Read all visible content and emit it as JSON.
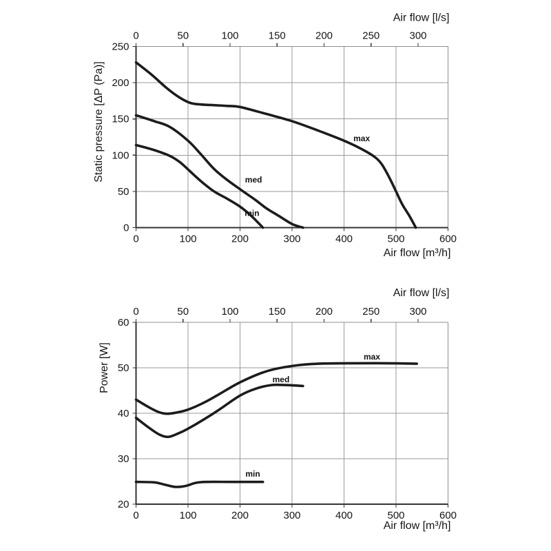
{
  "figure": {
    "description": "Fan performance curves: static pressure and power versus air flow, each at max / med / min speed"
  },
  "style": {
    "background": "#ffffff",
    "curve_color": "#1c1c1c",
    "grid_color": "#9a9a9a",
    "frame_color": "#8d8d8d",
    "axis_color": "#333333",
    "text_color": "#151515"
  },
  "chart_data": [
    {
      "id": "static-pressure",
      "type": "line",
      "ylabel": "Static pressure [ΔP (Pa)]",
      "xlabel": "Air flow [m³/h]",
      "x2label": "Air flow [l/s]",
      "xlim": [
        0,
        600
      ],
      "ylim": [
        0,
        250
      ],
      "x2lim": [
        0,
        300
      ],
      "x_ticks": [
        0,
        100,
        200,
        300,
        400,
        500,
        600
      ],
      "y_ticks": [
        0,
        50,
        100,
        150,
        200,
        250
      ],
      "x2_ticks": [
        0,
        50,
        100,
        150,
        200,
        250,
        300
      ],
      "x2_span_fraction": 0.904,
      "grid": true,
      "series": [
        {
          "name": "max",
          "label": "max",
          "label_at": [
            434,
            123
          ],
          "points": [
            [
              0,
              228
            ],
            [
              30,
              211
            ],
            [
              60,
              192
            ],
            [
              85,
              179
            ],
            [
              105,
              172
            ],
            [
              125,
              170
            ],
            [
              150,
              169
            ],
            [
              175,
              168
            ],
            [
              200,
              166.5
            ],
            [
              250,
              157
            ],
            [
              300,
              147
            ],
            [
              350,
              134
            ],
            [
              400,
              120
            ],
            [
              435,
              108
            ],
            [
              460,
              97
            ],
            [
              472,
              88
            ],
            [
              482,
              76
            ],
            [
              492,
              62
            ],
            [
              500,
              50
            ],
            [
              512,
              32
            ],
            [
              525,
              17
            ],
            [
              538,
              0
            ]
          ]
        },
        {
          "name": "med",
          "label": "med",
          "label_at": [
            226,
            66
          ],
          "points": [
            [
              0,
              155
            ],
            [
              35,
              147
            ],
            [
              65,
              139
            ],
            [
              100,
              120
            ],
            [
              125,
              101
            ],
            [
              150,
              81
            ],
            [
              175,
              66
            ],
            [
              200,
              53
            ],
            [
              230,
              38
            ],
            [
              250,
              27
            ],
            [
              275,
              16
            ],
            [
              300,
              5
            ],
            [
              321,
              0
            ]
          ]
        },
        {
          "name": "min",
          "label": "min",
          "label_at": [
            223,
            20
          ],
          "points": [
            [
              0,
              114
            ],
            [
              35,
              107
            ],
            [
              65,
              99
            ],
            [
              85,
              90
            ],
            [
              105,
              77
            ],
            [
              125,
              64
            ],
            [
              150,
              50
            ],
            [
              175,
              40
            ],
            [
              200,
              29
            ],
            [
              222,
              16
            ],
            [
              244,
              0
            ]
          ]
        }
      ]
    },
    {
      "id": "power",
      "type": "line",
      "ylabel": "Power [W]",
      "xlabel": "Air flow [m³/h]",
      "x2label": "Air flow [l/s]",
      "xlim": [
        0,
        600
      ],
      "ylim": [
        20,
        60
      ],
      "x2lim": [
        0,
        300
      ],
      "x_ticks": [
        0,
        100,
        200,
        300,
        400,
        500,
        600
      ],
      "y_ticks": [
        20,
        30,
        40,
        50,
        60
      ],
      "x2_ticks": [
        0,
        50,
        100,
        150,
        200,
        250,
        300
      ],
      "x2_span_fraction": 0.904,
      "grid": true,
      "series": [
        {
          "name": "max",
          "label": "max",
          "label_at": [
            453.6,
            52.4
          ],
          "points": [
            [
              0,
              43
            ],
            [
              25,
              41.3
            ],
            [
              45,
              40.2
            ],
            [
              60,
              39.9
            ],
            [
              80,
              40.2
            ],
            [
              100,
              40.8
            ],
            [
              130,
              42.3
            ],
            [
              160,
              44.2
            ],
            [
              200,
              46.8
            ],
            [
              250,
              49.2
            ],
            [
              300,
              50.4
            ],
            [
              350,
              50.9
            ],
            [
              420,
              51
            ],
            [
              480,
              51
            ],
            [
              540,
              50.9
            ]
          ]
        },
        {
          "name": "med",
          "label": "med",
          "label_at": [
            278.8,
            47.4
          ],
          "points": [
            [
              0,
              39
            ],
            [
              25,
              36.8
            ],
            [
              45,
              35.3
            ],
            [
              62,
              34.8
            ],
            [
              80,
              35.5
            ],
            [
              100,
              36.6
            ],
            [
              130,
              38.6
            ],
            [
              160,
              40.8
            ],
            [
              200,
              43.9
            ],
            [
              230,
              45.4
            ],
            [
              260,
              46.2
            ],
            [
              290,
              46.2
            ],
            [
              321,
              46
            ]
          ]
        },
        {
          "name": "min",
          "label": "min",
          "label_at": [
            224.5,
            26.7
          ],
          "points": [
            [
              0,
              24.9
            ],
            [
              35,
              24.8
            ],
            [
              55,
              24.3
            ],
            [
              75,
              23.8
            ],
            [
              95,
              24
            ],
            [
              115,
              24.7
            ],
            [
              135,
              24.9
            ],
            [
              180,
              24.9
            ],
            [
              220,
              24.9
            ],
            [
              244,
              24.9
            ]
          ]
        }
      ]
    }
  ]
}
